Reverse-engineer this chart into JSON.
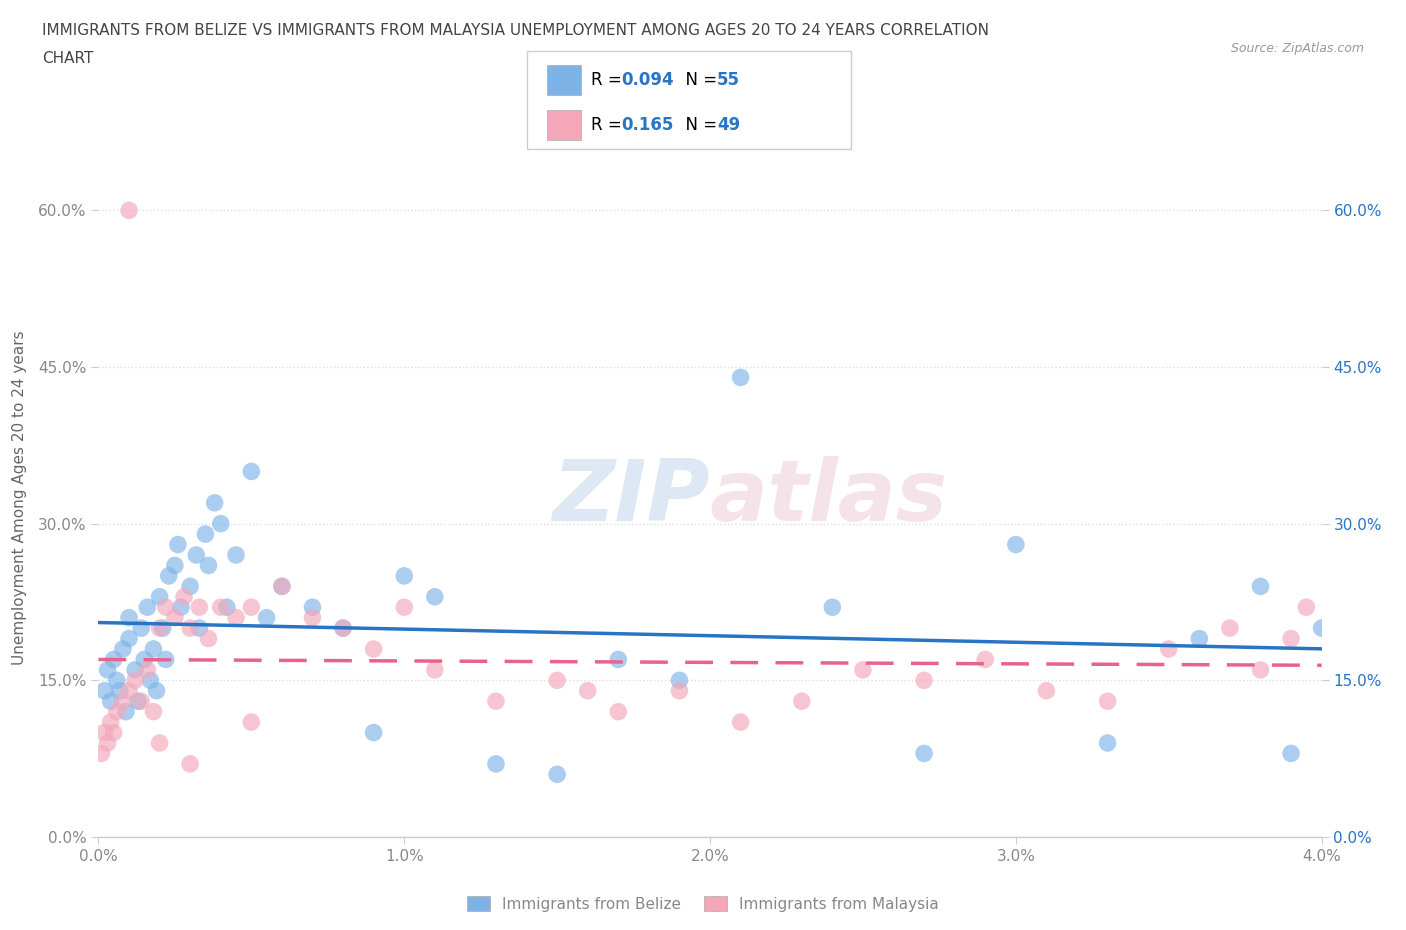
{
  "title_line1": "IMMIGRANTS FROM BELIZE VS IMMIGRANTS FROM MALAYSIA UNEMPLOYMENT AMONG AGES 20 TO 24 YEARS CORRELATION",
  "title_line2": "CHART",
  "source_text": "Source: ZipAtlas.com",
  "ylabel": "Unemployment Among Ages 20 to 24 years",
  "xlim": [
    0.0,
    0.04
  ],
  "ylim": [
    0.0,
    0.65
  ],
  "xticks": [
    0.0,
    0.01,
    0.02,
    0.03,
    0.04
  ],
  "xticklabels": [
    "0.0%",
    "1.0%",
    "2.0%",
    "3.0%",
    "4.0%"
  ],
  "yticks": [
    0.0,
    0.15,
    0.3,
    0.45,
    0.6
  ],
  "yticklabels": [
    "0.0%",
    "15.0%",
    "30.0%",
    "45.0%",
    "60.0%"
  ],
  "belize_color": "#7EB3E8",
  "malaysia_color": "#F4A7B9",
  "belize_line_color": "#2874C5",
  "malaysia_line_color": "#E8628A",
  "belize_R": 0.094,
  "belize_N": 55,
  "malaysia_R": 0.165,
  "malaysia_N": 49,
  "belize_x": [
    0.0002,
    0.0003,
    0.0004,
    0.0005,
    0.0006,
    0.0007,
    0.0008,
    0.0009,
    0.001,
    0.001,
    0.0012,
    0.0013,
    0.0014,
    0.0015,
    0.0016,
    0.0017,
    0.0018,
    0.0019,
    0.002,
    0.0021,
    0.0022,
    0.0023,
    0.0025,
    0.0026,
    0.0027,
    0.003,
    0.0032,
    0.0033,
    0.0035,
    0.0036,
    0.0038,
    0.004,
    0.0042,
    0.0045,
    0.005,
    0.0055,
    0.006,
    0.007,
    0.008,
    0.009,
    0.01,
    0.011,
    0.013,
    0.015,
    0.017,
    0.019,
    0.021,
    0.024,
    0.027,
    0.03,
    0.033,
    0.036,
    0.038,
    0.039,
    0.04
  ],
  "belize_y": [
    0.14,
    0.16,
    0.13,
    0.17,
    0.15,
    0.14,
    0.18,
    0.12,
    0.19,
    0.21,
    0.16,
    0.13,
    0.2,
    0.17,
    0.22,
    0.15,
    0.18,
    0.14,
    0.23,
    0.2,
    0.17,
    0.25,
    0.26,
    0.28,
    0.22,
    0.24,
    0.27,
    0.2,
    0.29,
    0.26,
    0.32,
    0.3,
    0.22,
    0.27,
    0.35,
    0.21,
    0.24,
    0.22,
    0.2,
    0.1,
    0.25,
    0.23,
    0.07,
    0.06,
    0.17,
    0.15,
    0.44,
    0.22,
    0.08,
    0.28,
    0.09,
    0.19,
    0.24,
    0.08,
    0.2
  ],
  "malaysia_x": [
    0.0001,
    0.0002,
    0.0003,
    0.0004,
    0.0005,
    0.0006,
    0.0008,
    0.001,
    0.0012,
    0.0014,
    0.0016,
    0.0018,
    0.002,
    0.0022,
    0.0025,
    0.0028,
    0.003,
    0.0033,
    0.0036,
    0.004,
    0.0045,
    0.005,
    0.006,
    0.007,
    0.008,
    0.009,
    0.01,
    0.011,
    0.013,
    0.015,
    0.017,
    0.019,
    0.021,
    0.023,
    0.025,
    0.027,
    0.029,
    0.031,
    0.033,
    0.035,
    0.037,
    0.038,
    0.039,
    0.0395,
    0.001,
    0.002,
    0.003,
    0.005,
    0.016
  ],
  "malaysia_y": [
    0.08,
    0.1,
    0.09,
    0.11,
    0.1,
    0.12,
    0.13,
    0.14,
    0.15,
    0.13,
    0.16,
    0.12,
    0.2,
    0.22,
    0.21,
    0.23,
    0.2,
    0.22,
    0.19,
    0.22,
    0.21,
    0.22,
    0.24,
    0.21,
    0.2,
    0.18,
    0.22,
    0.16,
    0.13,
    0.15,
    0.12,
    0.14,
    0.11,
    0.13,
    0.16,
    0.15,
    0.17,
    0.14,
    0.13,
    0.18,
    0.2,
    0.16,
    0.19,
    0.22,
    0.6,
    0.09,
    0.07,
    0.11,
    0.14
  ],
  "watermark_zip": "ZIP",
  "watermark_atlas": "atlas",
  "grid_color": "#DDDDDD",
  "title_color": "#444444",
  "axis_label_color": "#666666",
  "tick_color": "#888888",
  "source_color": "#999999",
  "legend_blue_color": "#2874C5",
  "right_tick_color": "#2874C5"
}
